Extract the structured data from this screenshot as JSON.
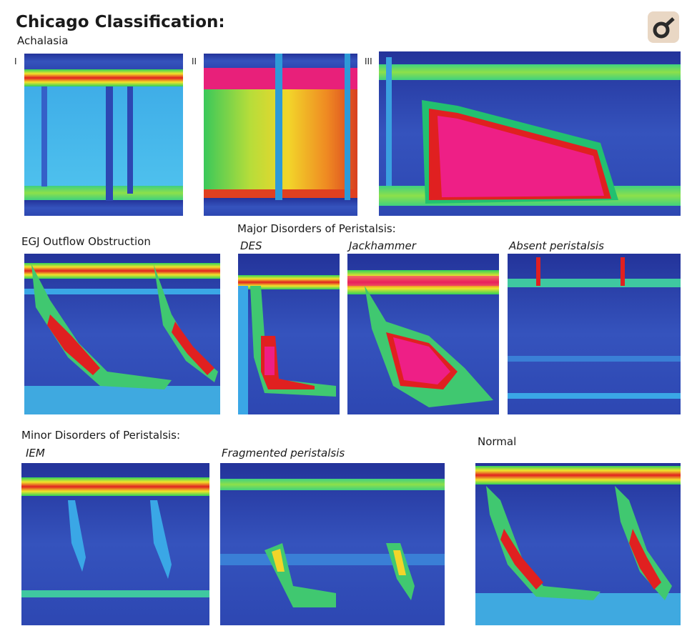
{
  "header": {
    "title": "Chicago Classification:"
  },
  "sections": [
    {
      "title": "Achalasia",
      "panels": [
        {
          "label": "I"
        },
        {
          "label": "II"
        },
        {
          "label": "III"
        }
      ]
    },
    {
      "title": "EGJ Outflow Obstruction"
    },
    {
      "title": "Major Disorders of Peristalsis:",
      "panels": [
        {
          "label": "DES"
        },
        {
          "label": "Jackhammer"
        },
        {
          "label": "Absent peristalsis"
        }
      ]
    },
    {
      "title": "Minor Disorders of Peristalsis:",
      "panels": [
        {
          "label": "IEM"
        },
        {
          "label": "Fragmented peristalsis"
        }
      ]
    },
    {
      "title": "Normal"
    }
  ]
}
